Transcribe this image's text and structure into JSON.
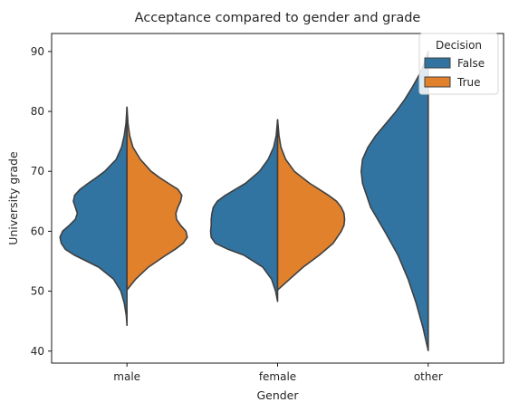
{
  "chart_data": {
    "type": "violin",
    "split": true,
    "title": "Acceptance compared to gender and grade",
    "xlabel": "Gender",
    "ylabel": "University grade",
    "categories": [
      "male",
      "female",
      "other"
    ],
    "ylim": [
      38,
      93
    ],
    "yticks": [
      40,
      50,
      60,
      70,
      80,
      90
    ],
    "grid": false,
    "legend": {
      "title": "Decision",
      "placement": "top-right",
      "entries": [
        "False",
        "True"
      ]
    },
    "series": [
      {
        "name": "False",
        "color": "#3274a1",
        "side": "left",
        "violins": [
          {
            "category": "male",
            "profile": [
              [
                44.3,
                0
              ],
              [
                46,
                0.01
              ],
              [
                48,
                0.04
              ],
              [
                50,
                0.09
              ],
              [
                52,
                0.2
              ],
              [
                54,
                0.42
              ],
              [
                56,
                0.78
              ],
              [
                57,
                0.92
              ],
              [
                58,
                0.98
              ],
              [
                59,
                1.0
              ],
              [
                60,
                0.96
              ],
              [
                61,
                0.86
              ],
              [
                62,
                0.77
              ],
              [
                63,
                0.74
              ],
              [
                64,
                0.77
              ],
              [
                65,
                0.8
              ],
              [
                66,
                0.78
              ],
              [
                67,
                0.7
              ],
              [
                68,
                0.58
              ],
              [
                69,
                0.45
              ],
              [
                70,
                0.33
              ],
              [
                72,
                0.16
              ],
              [
                74,
                0.08
              ],
              [
                76,
                0.04
              ],
              [
                78,
                0.015
              ],
              [
                80.7,
                0
              ]
            ]
          },
          {
            "category": "female",
            "profile": [
              [
                48.3,
                0
              ],
              [
                50,
                0.03
              ],
              [
                52,
                0.09
              ],
              [
                54,
                0.22
              ],
              [
                56,
                0.5
              ],
              [
                57,
                0.74
              ],
              [
                58,
                0.93
              ],
              [
                59,
                0.99
              ],
              [
                60,
                1.0
              ],
              [
                61,
                0.99
              ],
              [
                62,
                0.99
              ],
              [
                63,
                0.98
              ],
              [
                64,
                0.96
              ],
              [
                65,
                0.9
              ],
              [
                66,
                0.78
              ],
              [
                67,
                0.63
              ],
              [
                68,
                0.48
              ],
              [
                70,
                0.27
              ],
              [
                72,
                0.14
              ],
              [
                74,
                0.06
              ],
              [
                76,
                0.02
              ],
              [
                78.6,
                0
              ]
            ]
          },
          {
            "category": "other",
            "profile": [
              [
                40.1,
                0
              ],
              [
                44,
                0.08
              ],
              [
                48,
                0.18
              ],
              [
                52,
                0.3
              ],
              [
                56,
                0.45
              ],
              [
                60,
                0.65
              ],
              [
                64,
                0.86
              ],
              [
                68,
                0.98
              ],
              [
                70,
                1.0
              ],
              [
                72,
                0.98
              ],
              [
                74,
                0.9
              ],
              [
                76,
                0.78
              ],
              [
                78,
                0.63
              ],
              [
                80,
                0.48
              ],
              [
                82,
                0.35
              ],
              [
                84,
                0.24
              ],
              [
                86,
                0.14
              ],
              [
                88,
                0.06
              ],
              [
                90,
                0
              ]
            ]
          }
        ]
      },
      {
        "name": "True",
        "color": "#e1812c",
        "side": "right",
        "violins": [
          {
            "category": "male",
            "profile": [
              [
                50.2,
                0
              ],
              [
                52,
                0.13
              ],
              [
                54,
                0.32
              ],
              [
                56,
                0.58
              ],
              [
                57,
                0.72
              ],
              [
                58,
                0.84
              ],
              [
                59,
                0.9
              ],
              [
                60,
                0.88
              ],
              [
                61,
                0.8
              ],
              [
                62,
                0.74
              ],
              [
                63,
                0.73
              ],
              [
                64,
                0.76
              ],
              [
                65,
                0.8
              ],
              [
                66,
                0.82
              ],
              [
                67,
                0.76
              ],
              [
                68,
                0.62
              ],
              [
                69,
                0.48
              ],
              [
                70,
                0.36
              ],
              [
                72,
                0.2
              ],
              [
                74,
                0.09
              ],
              [
                76,
                0.04
              ],
              [
                78,
                0.015
              ],
              [
                80.7,
                0
              ]
            ]
          },
          {
            "category": "female",
            "profile": [
              [
                50.2,
                0
              ],
              [
                52,
                0.18
              ],
              [
                54,
                0.38
              ],
              [
                56,
                0.62
              ],
              [
                58,
                0.83
              ],
              [
                60,
                0.95
              ],
              [
                61,
                0.99
              ],
              [
                62,
                1.0
              ],
              [
                63,
                0.99
              ],
              [
                64,
                0.95
              ],
              [
                65,
                0.88
              ],
              [
                66,
                0.76
              ],
              [
                67,
                0.62
              ],
              [
                68,
                0.48
              ],
              [
                70,
                0.25
              ],
              [
                72,
                0.12
              ],
              [
                74,
                0.05
              ],
              [
                76,
                0.02
              ],
              [
                78.6,
                0
              ]
            ]
          }
        ]
      }
    ]
  }
}
